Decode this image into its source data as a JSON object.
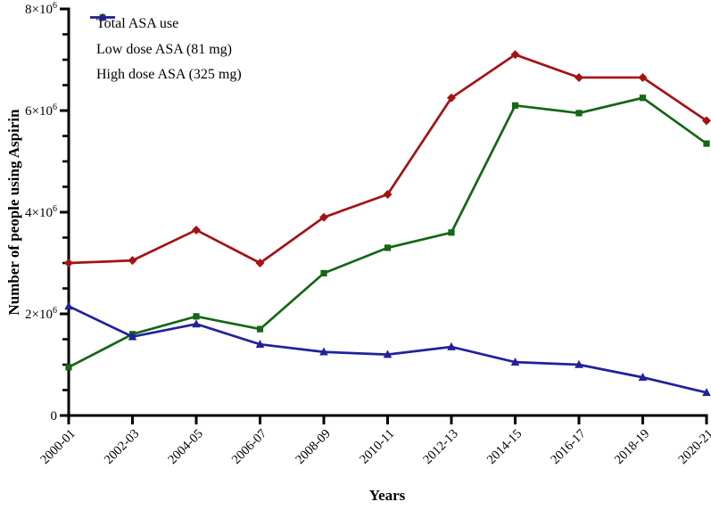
{
  "figure": {
    "background": "#ffffff",
    "text_color": "#000000",
    "axis_color": "#000000"
  },
  "chart_data": {
    "type": "line",
    "title": "",
    "xlabel": "Years",
    "ylabel": "Number of people using Aspirin",
    "categories": [
      "2000-01",
      "2002-03",
      "2004-05",
      "2006-07",
      "2008-09",
      "2010-11",
      "2012-13",
      "2014-15",
      "2016-17",
      "2018-19",
      "2020-21"
    ],
    "series": [
      {
        "name": "Total ASA use",
        "color": "#A41216",
        "marker": "diamond",
        "values": [
          3000000,
          3050000,
          3650000,
          3000000,
          3900000,
          4350000,
          6250000,
          7100000,
          6650000,
          6650000,
          5800000
        ]
      },
      {
        "name": "Low dose ASA (81 mg)",
        "color": "#156615",
        "marker": "square",
        "values": [
          950000,
          1600000,
          1950000,
          1700000,
          2800000,
          3300000,
          3600000,
          6100000,
          5950000,
          6250000,
          5350000
        ]
      },
      {
        "name": "High dose ASA (325 mg)",
        "color": "#21219B",
        "marker": "triangle",
        "values": [
          2150000,
          1550000,
          1800000,
          1400000,
          1250000,
          1200000,
          1350000,
          1050000,
          1000000,
          750000,
          450000
        ]
      }
    ],
    "ylim": [
      0,
      8000000
    ],
    "yticks": {
      "values": [
        0,
        2000000,
        4000000,
        6000000,
        8000000
      ],
      "labels": [
        {
          "base": "0",
          "sup": ""
        },
        {
          "base": "2×10",
          "sup": "6"
        },
        {
          "base": "4×10",
          "sup": "6"
        },
        {
          "base": "6×10",
          "sup": "6"
        },
        {
          "base": "8×10",
          "sup": "6"
        }
      ]
    },
    "y_minor_step": 500000,
    "grid": false,
    "legend_position": "top-left"
  }
}
